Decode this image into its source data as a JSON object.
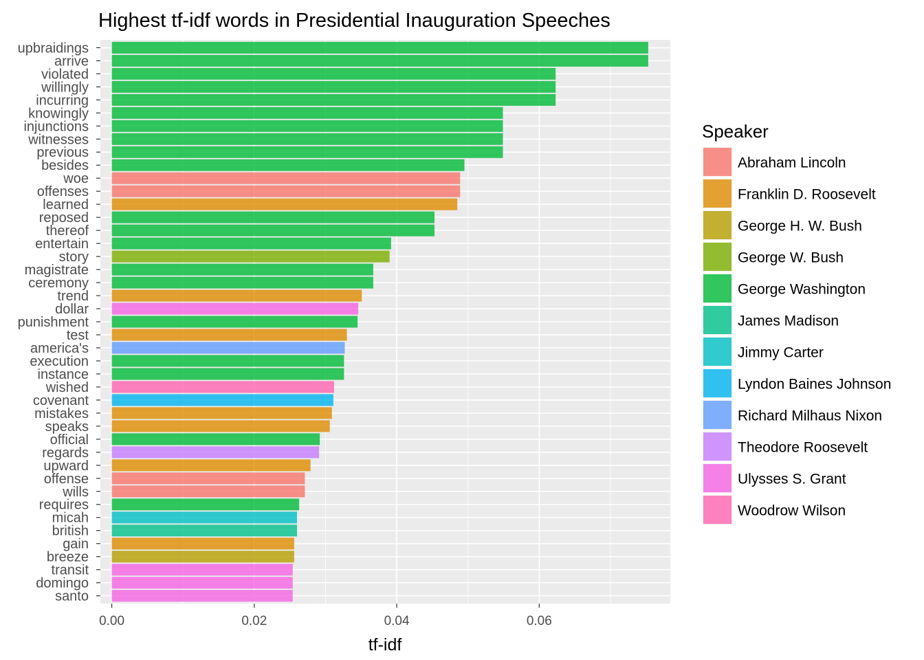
{
  "chart_data": {
    "type": "bar",
    "orientation": "horizontal",
    "title": "Highest tf-idf words in Presidential Inauguration Speeches",
    "xlabel": "tf-idf",
    "ylabel": "",
    "xlim": [
      -0.0016,
      0.0784
    ],
    "xticks": [
      0.0,
      0.02,
      0.04,
      0.06
    ],
    "xtick_labels": [
      "0.00",
      "0.02",
      "0.04",
      "0.06"
    ],
    "grid": true,
    "legend": {
      "title": "Speaker",
      "position": "right",
      "entries": [
        {
          "name": "Abraham Lincoln",
          "color": "#F8766D"
        },
        {
          "name": "Franklin D. Roosevelt",
          "color": "#DE8C00"
        },
        {
          "name": "George H. W. Bush",
          "color": "#B79F00"
        },
        {
          "name": "George W. Bush",
          "color": "#7CAE00"
        },
        {
          "name": "George Washington",
          "color": "#00BA38"
        },
        {
          "name": "James Madison",
          "color": "#00C08B"
        },
        {
          "name": "Jimmy Carter",
          "color": "#00BFC4"
        },
        {
          "name": "Lyndon Baines Johnson",
          "color": "#00B4F0"
        },
        {
          "name": "Richard Milhaus Nixon",
          "color": "#619CFF"
        },
        {
          "name": "Theodore Roosevelt",
          "color": "#C77CFF"
        },
        {
          "name": "Ulysses S. Grant",
          "color": "#F564E3"
        },
        {
          "name": "Woodrow Wilson",
          "color": "#FF64B0"
        }
      ]
    },
    "bars": [
      {
        "word": "upbraidings",
        "value": 0.0753,
        "speaker": "George Washington"
      },
      {
        "word": "arrive",
        "value": 0.0753,
        "speaker": "George Washington"
      },
      {
        "word": "violated",
        "value": 0.0623,
        "speaker": "George Washington"
      },
      {
        "word": "willingly",
        "value": 0.0623,
        "speaker": "George Washington"
      },
      {
        "word": "incurring",
        "value": 0.0623,
        "speaker": "George Washington"
      },
      {
        "word": "knowingly",
        "value": 0.0549,
        "speaker": "George Washington"
      },
      {
        "word": "injunctions",
        "value": 0.0549,
        "speaker": "George Washington"
      },
      {
        "word": "witnesses",
        "value": 0.0549,
        "speaker": "George Washington"
      },
      {
        "word": "previous",
        "value": 0.0549,
        "speaker": "George Washington"
      },
      {
        "word": "besides",
        "value": 0.0495,
        "speaker": "George Washington"
      },
      {
        "word": "woe",
        "value": 0.0489,
        "speaker": "Abraham Lincoln"
      },
      {
        "word": "offenses",
        "value": 0.0489,
        "speaker": "Abraham Lincoln"
      },
      {
        "word": "learned",
        "value": 0.0485,
        "speaker": "Franklin D. Roosevelt"
      },
      {
        "word": "reposed",
        "value": 0.0453,
        "speaker": "George Washington"
      },
      {
        "word": "thereof",
        "value": 0.0453,
        "speaker": "George Washington"
      },
      {
        "word": "entertain",
        "value": 0.0392,
        "speaker": "George Washington"
      },
      {
        "word": "story",
        "value": 0.039,
        "speaker": "George W. Bush"
      },
      {
        "word": "magistrate",
        "value": 0.0367,
        "speaker": "George Washington"
      },
      {
        "word": "ceremony",
        "value": 0.0367,
        "speaker": "George Washington"
      },
      {
        "word": "trend",
        "value": 0.0351,
        "speaker": "Franklin D. Roosevelt"
      },
      {
        "word": "dollar",
        "value": 0.0346,
        "speaker": "Ulysses S. Grant"
      },
      {
        "word": "punishment",
        "value": 0.0345,
        "speaker": "George Washington"
      },
      {
        "word": "test",
        "value": 0.033,
        "speaker": "Franklin D. Roosevelt"
      },
      {
        "word": "america's",
        "value": 0.0327,
        "speaker": "Richard Milhaus Nixon"
      },
      {
        "word": "execution",
        "value": 0.0326,
        "speaker": "George Washington"
      },
      {
        "word": "instance",
        "value": 0.0326,
        "speaker": "George Washington"
      },
      {
        "word": "wished",
        "value": 0.0312,
        "speaker": "Woodrow Wilson"
      },
      {
        "word": "covenant",
        "value": 0.0311,
        "speaker": "Lyndon Baines Johnson"
      },
      {
        "word": "mistakes",
        "value": 0.0309,
        "speaker": "Franklin D. Roosevelt"
      },
      {
        "word": "speaks",
        "value": 0.0306,
        "speaker": "Franklin D. Roosevelt"
      },
      {
        "word": "official",
        "value": 0.0292,
        "speaker": "George Washington"
      },
      {
        "word": "regards",
        "value": 0.0291,
        "speaker": "Theodore Roosevelt"
      },
      {
        "word": "upward",
        "value": 0.0279,
        "speaker": "Franklin D. Roosevelt"
      },
      {
        "word": "offense",
        "value": 0.0271,
        "speaker": "Abraham Lincoln"
      },
      {
        "word": "wills",
        "value": 0.0271,
        "speaker": "Abraham Lincoln"
      },
      {
        "word": "requires",
        "value": 0.0263,
        "speaker": "George Washington"
      },
      {
        "word": "micah",
        "value": 0.026,
        "speaker": "Jimmy Carter"
      },
      {
        "word": "british",
        "value": 0.026,
        "speaker": "James Madison"
      },
      {
        "word": "gain",
        "value": 0.0256,
        "speaker": "Franklin D. Roosevelt"
      },
      {
        "word": "breeze",
        "value": 0.0256,
        "speaker": "George H. W. Bush"
      },
      {
        "word": "transit",
        "value": 0.0254,
        "speaker": "Ulysses S. Grant"
      },
      {
        "word": "domingo",
        "value": 0.0254,
        "speaker": "Ulysses S. Grant"
      },
      {
        "word": "santo",
        "value": 0.0254,
        "speaker": "Ulysses S. Grant"
      }
    ]
  }
}
